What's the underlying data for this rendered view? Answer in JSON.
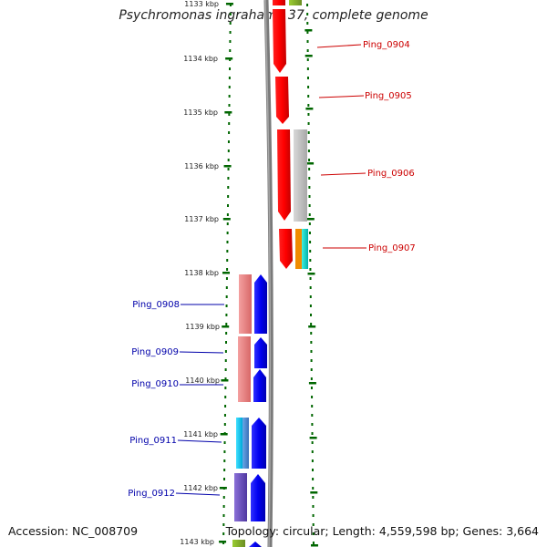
{
  "header": {
    "title": "Psychromonas ingrahamii 37, complete genome"
  },
  "footer": {
    "accession": "Accession: NC_008709",
    "summary": "Topology: circular; Length: 4,559,598 bp; Genes: 3,664"
  },
  "ruler": {
    "ticks": [
      "1133 kbp",
      "1134 kbp",
      "1135 kbp",
      "1136 kbp",
      "1137 kbp",
      "1138 kbp",
      "1139 kbp",
      "1140 kbp",
      "1141 kbp",
      "1142 kbp",
      "1143 kbp"
    ]
  },
  "gene_labels": [
    {
      "label": "Ping_0904",
      "strand": "forward",
      "color": "#cc0000"
    },
    {
      "label": "Ping_0905",
      "strand": "forward",
      "color": "#cc0000"
    },
    {
      "label": "Ping_0906",
      "strand": "forward",
      "color": "#cc0000"
    },
    {
      "label": "Ping_0907",
      "strand": "forward",
      "color": "#cc0000"
    },
    {
      "label": "Ping_0908",
      "strand": "reverse",
      "color": "#0000aa"
    },
    {
      "label": "Ping_0909",
      "strand": "reverse",
      "color": "#0000aa"
    },
    {
      "label": "Ping_0910",
      "strand": "reverse",
      "color": "#0000aa"
    },
    {
      "label": "Ping_0911",
      "strand": "reverse",
      "color": "#0000aa"
    },
    {
      "label": "Ping_0912",
      "strand": "reverse",
      "color": "#0000aa"
    }
  ],
  "colors": {
    "forward_gene": "#ff0000",
    "reverse_gene": "#0000ee",
    "forward_label": "#cc0000",
    "reverse_label": "#0000aa",
    "tick": "#006600",
    "backbone": "#777777"
  }
}
